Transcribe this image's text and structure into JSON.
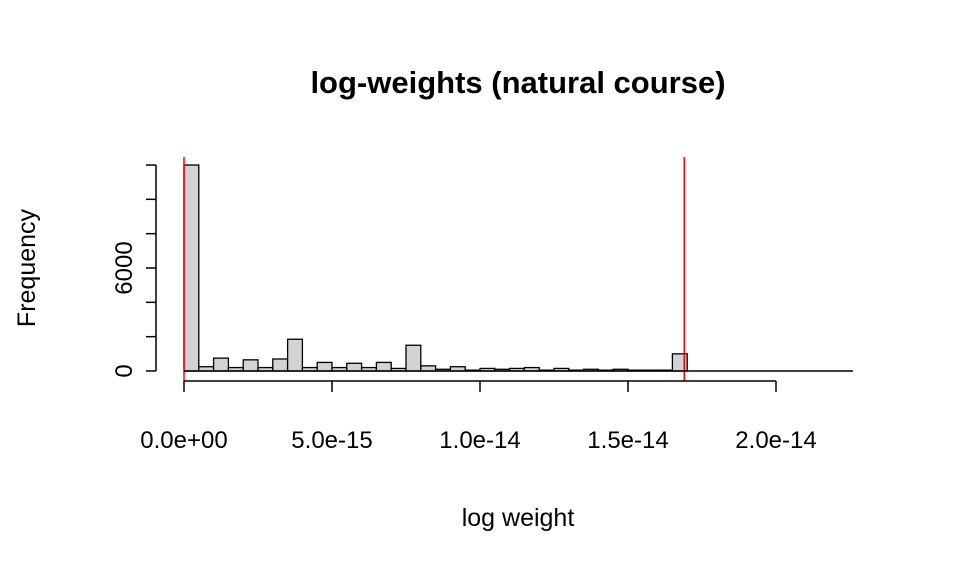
{
  "chart_data": {
    "type": "bar",
    "title": "log-weights (natural course)",
    "xlabel": "log weight",
    "ylabel": "Frequency",
    "xlim": [
      0,
      2.25e-14
    ],
    "ylim": [
      0,
      12000
    ],
    "x_ticks": [
      0,
      5e-15,
      1e-14,
      1.5e-14,
      2e-14
    ],
    "x_tick_labels": [
      "0.0e+00",
      "5.0e-15",
      "1.0e-14",
      "1.5e-14",
      "2.0e-14"
    ],
    "y_ticks": [
      0,
      2000,
      4000,
      6000,
      8000,
      10000,
      12000
    ],
    "y_tick_labels": [
      "0",
      "",
      "",
      "6000",
      "",
      "",
      ""
    ],
    "bin_width": 5e-16,
    "bin_starts": [
      0,
      5e-16,
      1e-15,
      1.5e-15,
      2e-15,
      2.5e-15,
      3e-15,
      3.5e-15,
      4e-15,
      4.5e-15,
      5e-15,
      5.5e-15,
      6e-15,
      6.5e-15,
      7e-15,
      7.5e-15,
      8e-15,
      8.5e-15,
      9e-15,
      9.5e-15,
      1e-14,
      1.05e-14,
      1.1e-14,
      1.15e-14,
      1.2e-14,
      1.25e-14,
      1.3e-14,
      1.35e-14,
      1.4e-14,
      1.45e-14,
      1.5e-14,
      1.55e-14,
      1.6e-14,
      1.65e-14
    ],
    "values": [
      12000,
      250,
      750,
      200,
      650,
      200,
      700,
      1850,
      200,
      500,
      200,
      450,
      200,
      500,
      150,
      1500,
      300,
      100,
      250,
      50,
      150,
      100,
      150,
      200,
      50,
      150,
      50,
      100,
      50,
      100,
      50,
      50,
      50,
      1000
    ],
    "reference_lines": [
      0,
      1.69e-14
    ],
    "colors": {
      "bars": "#d3d3d3",
      "bar_border": "#000000",
      "reference_line": "#ff0000"
    }
  }
}
